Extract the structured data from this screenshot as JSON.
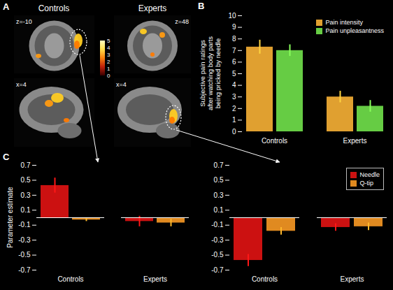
{
  "panel_letters": [
    "A",
    "B",
    "C"
  ],
  "panel_a": {
    "columns": [
      "Controls",
      "Experts"
    ],
    "slice_labels": [
      "z=-10",
      "z=48",
      "x=4",
      "x=4"
    ],
    "color_bar": {
      "range": [
        0,
        5
      ],
      "ticks": [
        0,
        1,
        2,
        3,
        4,
        5
      ]
    }
  },
  "chart_data": [
    {
      "type": "bar",
      "ylabel": "Subjective pain ratings after watching body parts being pricked by needle",
      "categories": [
        "Controls",
        "Experts"
      ],
      "series": [
        {
          "name": "Pain intensity",
          "color": "#e0a030",
          "values": [
            7.3,
            3.0
          ],
          "errors": [
            0.6,
            0.5
          ]
        },
        {
          "name": "Pain unpleasantness",
          "color": "#66cc44",
          "values": [
            7.0,
            2.2
          ],
          "errors": [
            0.5,
            0.5
          ]
        }
      ],
      "ylim": [
        0,
        10
      ],
      "yticks": [
        0,
        1,
        2,
        3,
        4,
        5,
        6,
        7,
        8,
        9,
        10
      ],
      "legend": "top-right"
    },
    {
      "type": "bar",
      "ylabel": "Parameter estimate",
      "categories": [
        "Controls",
        "Experts"
      ],
      "series": [
        {
          "name": "Needle",
          "color": "#cc1111",
          "values": [
            0.43,
            -0.05
          ],
          "errors": [
            0.1,
            0.07
          ]
        },
        {
          "name": "Q-tip",
          "color": "#e08a20",
          "values": [
            -0.03,
            -0.07
          ],
          "errors": [
            0.02,
            0.05
          ]
        }
      ],
      "ylim": [
        -0.7,
        0.7
      ],
      "yticks": [
        -0.7,
        -0.5,
        -0.3,
        -0.1,
        0.1,
        0.3,
        0.5,
        0.7
      ]
    },
    {
      "type": "bar",
      "categories": [
        "Controls",
        "Experts"
      ],
      "series": [
        {
          "name": "Needle",
          "color": "#cc1111",
          "values": [
            -0.57,
            -0.13
          ],
          "errors": [
            0.08,
            0.05
          ]
        },
        {
          "name": "Q-tip",
          "color": "#e08a20",
          "values": [
            -0.18,
            -0.12
          ],
          "errors": [
            0.05,
            0.05
          ]
        }
      ],
      "ylim": [
        -0.7,
        0.7
      ],
      "yticks": [
        -0.7,
        -0.5,
        -0.3,
        -0.1,
        0.1,
        0.3,
        0.5,
        0.7
      ],
      "legend": "top-right"
    }
  ]
}
